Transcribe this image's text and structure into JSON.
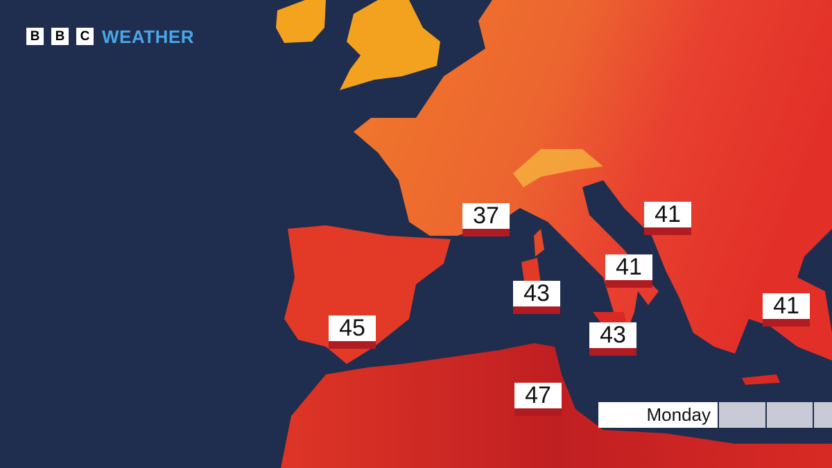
{
  "logo": {
    "letters": [
      "B",
      "B",
      "C"
    ],
    "text": "WEATHER"
  },
  "temperatures": [
    37,
    41,
    41,
    43,
    43,
    45,
    47,
    41
  ],
  "timeline": {
    "day": "Monday"
  }
}
